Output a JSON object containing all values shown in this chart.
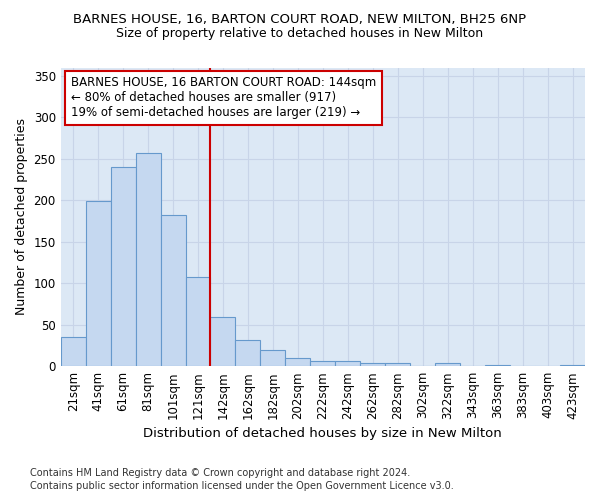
{
  "title1": "BARNES HOUSE, 16, BARTON COURT ROAD, NEW MILTON, BH25 6NP",
  "title2": "Size of property relative to detached houses in New Milton",
  "xlabel": "Distribution of detached houses by size in New Milton",
  "ylabel": "Number of detached properties",
  "footnote1": "Contains HM Land Registry data © Crown copyright and database right 2024.",
  "footnote2": "Contains public sector information licensed under the Open Government Licence v3.0.",
  "bar_labels": [
    "21sqm",
    "41sqm",
    "61sqm",
    "81sqm",
    "101sqm",
    "121sqm",
    "142sqm",
    "162sqm",
    "182sqm",
    "202sqm",
    "222sqm",
    "242sqm",
    "262sqm",
    "282sqm",
    "302sqm",
    "322sqm",
    "343sqm",
    "363sqm",
    "383sqm",
    "403sqm",
    "423sqm"
  ],
  "bar_values": [
    35,
    199,
    240,
    257,
    182,
    107,
    59,
    31,
    20,
    10,
    6,
    6,
    4,
    4,
    0,
    4,
    0,
    2,
    0,
    0,
    2
  ],
  "bar_color": "#c5d8f0",
  "bar_edge_color": "#6699cc",
  "grid_color": "#c8d4e8",
  "plot_bg_color": "#dce8f5",
  "figure_bg_color": "#ffffff",
  "marker_line_color": "#cc0000",
  "marker_bin_index": 6,
  "annotation_line1": "BARNES HOUSE, 16 BARTON COURT ROAD: 144sqm",
  "annotation_line2": "← 80% of detached houses are smaller (917)",
  "annotation_line3": "19% of semi-detached houses are larger (219) →",
  "annotation_box_color": "#ffffff",
  "annotation_border_color": "#cc0000",
  "ylim": [
    0,
    360
  ],
  "yticks": [
    0,
    50,
    100,
    150,
    200,
    250,
    300,
    350
  ],
  "title1_fontsize": 9.5,
  "title2_fontsize": 9.0,
  "xlabel_fontsize": 9.5,
  "ylabel_fontsize": 9.0,
  "tick_fontsize": 8.5,
  "footnote_fontsize": 7.0,
  "annot_fontsize": 8.5
}
